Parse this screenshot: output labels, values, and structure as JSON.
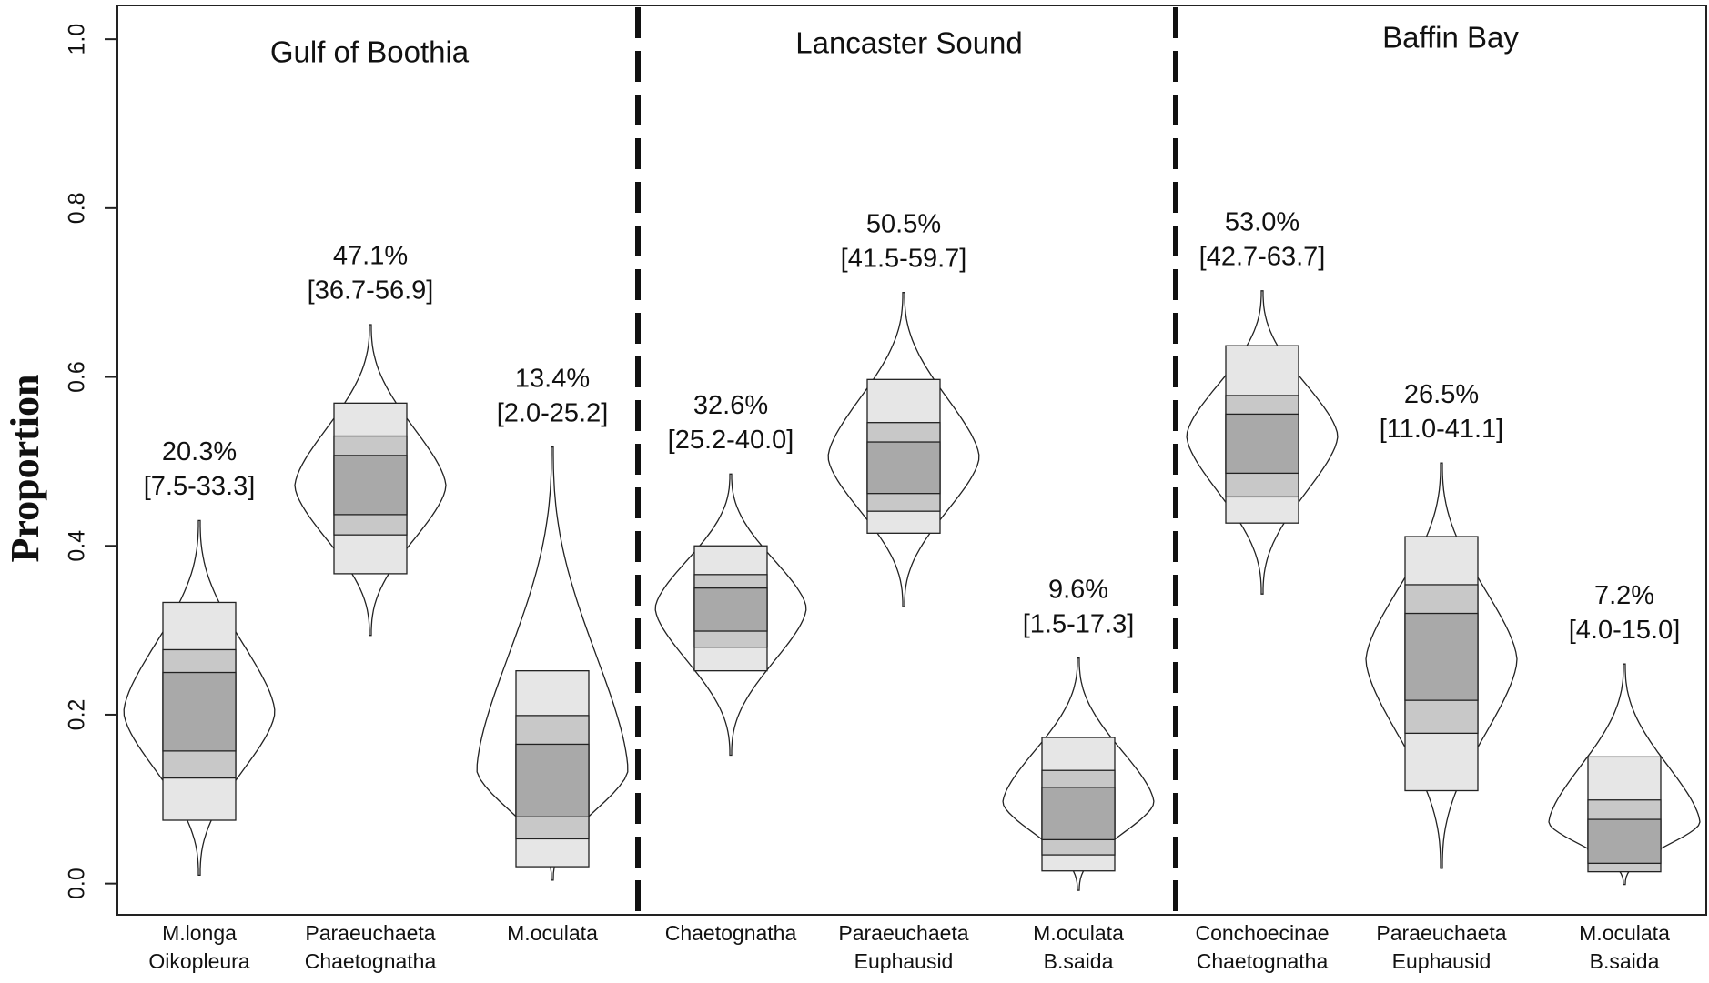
{
  "chart_data": {
    "type": "violin",
    "ylabel": "Proportion",
    "ylim": [
      -0.037,
      1.04
    ],
    "yticks": [
      {
        "value": 0,
        "label": "0.0"
      },
      0.2,
      0.4,
      0.6,
      0.8,
      {
        "value": 1,
        "label": "1.0"
      }
    ],
    "regions": [
      "Gulf of Boothia",
      "Lancaster Sound",
      "Baffin Bay"
    ],
    "categories": [
      [
        "M.longa",
        "Oikopleura"
      ],
      [
        "Paraeuchaeta",
        "Chaetognatha"
      ],
      [
        "M.oculata"
      ],
      [
        "Chaetognatha"
      ],
      [
        "Paraeuchaeta",
        "Euphausid"
      ],
      [
        "M.oculata",
        "B.saida"
      ],
      [
        "Conchoecinae",
        "Chaetognatha"
      ],
      [
        "Paraeuchaeta",
        "Euphausid"
      ],
      [
        "M.oculata",
        "B.saida"
      ]
    ],
    "estimates": [
      0.203,
      0.471,
      0.134,
      0.326,
      0.505,
      0.096,
      0.53,
      0.265,
      0.072
    ],
    "estimate_labels": [
      "20.3%",
      "47.1%",
      "13.4%",
      "32.6%",
      "50.5%",
      "9.6%",
      "53.0%",
      "26.5%",
      "7.2%"
    ],
    "ci": [
      [
        0.075,
        0.333
      ],
      [
        0.367,
        0.569
      ],
      [
        0.02,
        0.252
      ],
      [
        0.252,
        0.4
      ],
      [
        0.415,
        0.597
      ],
      [
        0.015,
        0.173
      ],
      [
        0.427,
        0.637
      ],
      [
        0.11,
        0.411
      ],
      [
        0.04,
        0.15
      ]
    ],
    "ci_labels": [
      "[7.5-33.3]",
      "[36.7-56.9]",
      "[2.0-25.2]",
      "[25.2-40.0]",
      "[41.5-59.7]",
      "[1.5-17.3]",
      "[42.7-63.7]",
      "[11.0-41.1]",
      "[4.0-15.0]"
    ],
    "mid_boxes": [
      [
        0.125,
        0.277
      ],
      [
        0.413,
        0.53
      ],
      [
        0.053,
        0.199
      ],
      [
        0.28,
        0.366
      ],
      [
        0.441,
        0.546
      ],
      [
        0.034,
        0.134
      ],
      [
        0.458,
        0.578
      ],
      [
        0.178,
        0.354
      ],
      [
        0.014,
        0.099
      ]
    ],
    "inner_boxes": [
      [
        0.157,
        0.25
      ],
      [
        0.437,
        0.507
      ],
      [
        0.079,
        0.165
      ],
      [
        0.299,
        0.35
      ],
      [
        0.462,
        0.523
      ],
      [
        0.052,
        0.114
      ],
      [
        0.486,
        0.556
      ],
      [
        0.217,
        0.32
      ],
      [
        0.024,
        0.076
      ]
    ],
    "ranges": [
      [
        0.01,
        0.43
      ],
      [
        0.294,
        0.662
      ],
      [
        0.004,
        0.517
      ],
      [
        0.152,
        0.485
      ],
      [
        0.328,
        0.7
      ],
      [
        -0.008,
        0.267
      ],
      [
        0.343,
        0.702
      ],
      [
        0.018,
        0.498
      ],
      [
        -0.001,
        0.26
      ]
    ],
    "colors": {
      "outer": "#e6e6e6",
      "mid": "#c8c8c8",
      "inner": "#a9a9a9"
    }
  }
}
